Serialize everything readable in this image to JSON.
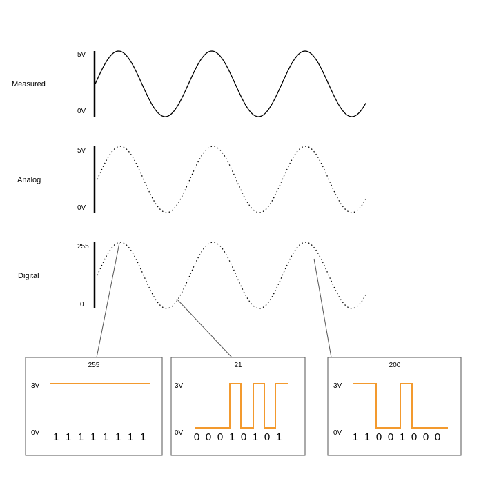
{
  "colors": {
    "signal": "#f39a2e",
    "line": "#000000",
    "connector": "#555555",
    "box_border": "#555555"
  },
  "rows": {
    "measured": {
      "label": "Measured",
      "max_label": "5V",
      "min_label": "0V",
      "style": "solid"
    },
    "analog": {
      "label": "Analog",
      "max_label": "5V",
      "min_label": "0V",
      "style": "dotted"
    },
    "digital": {
      "label": "Digital",
      "max_label": "255",
      "min_label": "0",
      "style": "dotted"
    }
  },
  "sine": {
    "cycles": 2.9
  },
  "panels": [
    {
      "value": "255",
      "high_label": "3V",
      "low_label": "0V",
      "bits": [
        "1",
        "1",
        "1",
        "1",
        "1",
        "1",
        "1",
        "1"
      ]
    },
    {
      "value": "21",
      "high_label": "3V",
      "low_label": "0V",
      "bits": [
        "0",
        "0",
        "0",
        "1",
        "0",
        "1",
        "0",
        "1"
      ]
    },
    {
      "value": "200",
      "high_label": "3V",
      "low_label": "0V",
      "bits": [
        "1",
        "1",
        "0",
        "0",
        "1",
        "0",
        "0",
        "0"
      ]
    }
  ]
}
